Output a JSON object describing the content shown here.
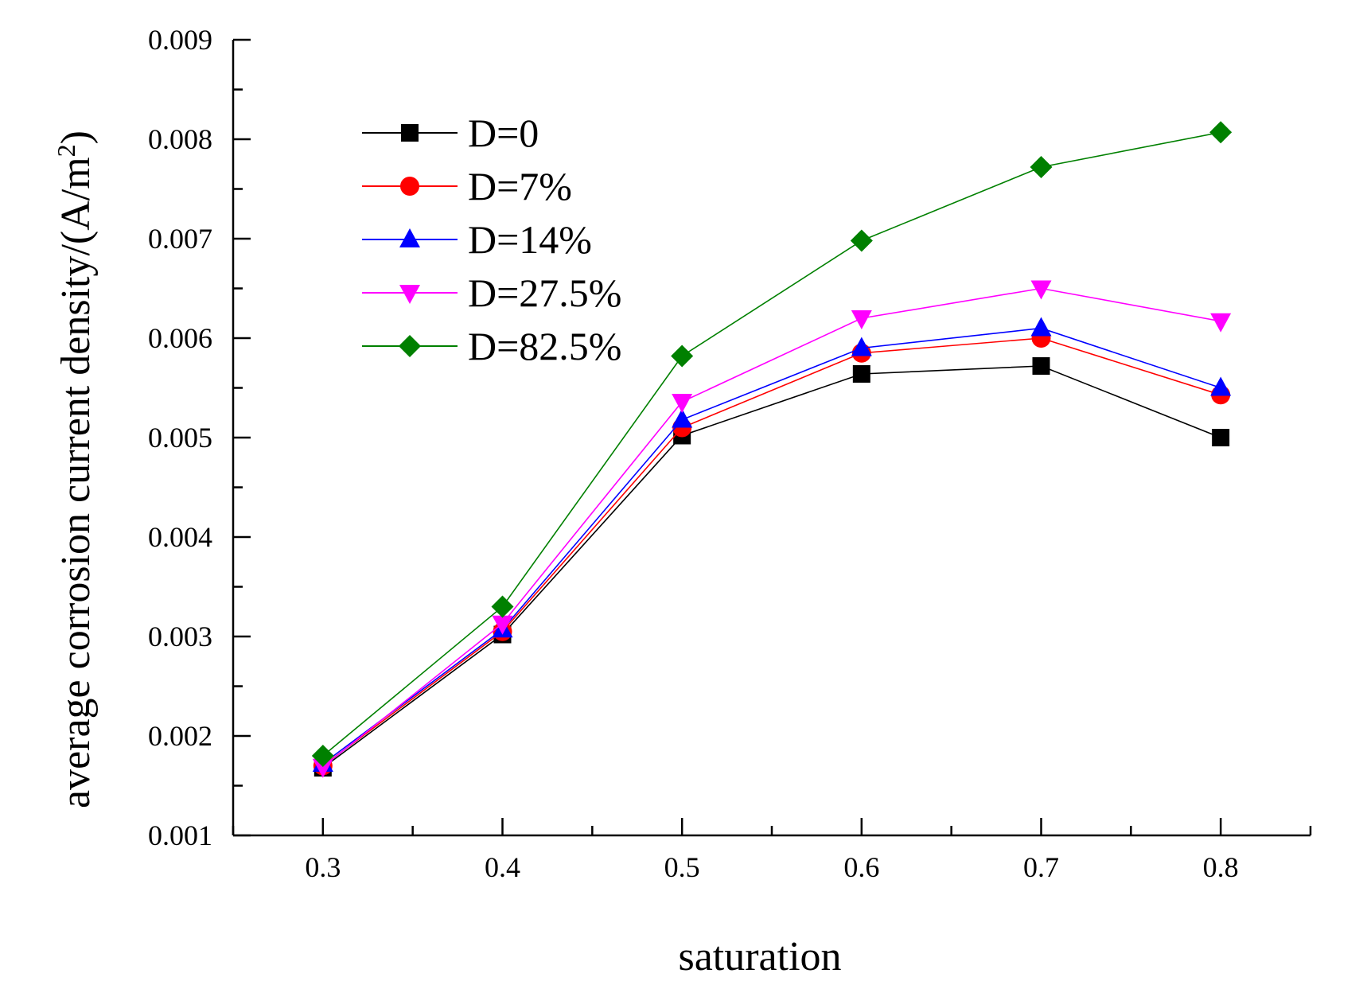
{
  "chart_data": {
    "type": "line",
    "title": "",
    "xlabel": "saturation",
    "ylabel": "average corrosion current density/(A/m²)",
    "ylabel_main": "average corrosion current density/(A/m",
    "ylabel_sup": "2",
    "ylabel_end": ")",
    "x": [
      0.3,
      0.4,
      0.5,
      0.6,
      0.7,
      0.8
    ],
    "x_tick_labels": [
      "0.3",
      "0.4",
      "0.5",
      "0.6",
      "0.7",
      "0.8"
    ],
    "y_tick_labels": [
      "0.001",
      "0.002",
      "0.003",
      "0.004",
      "0.005",
      "0.006",
      "0.007",
      "0.008",
      "0.009"
    ],
    "xlim": [
      0.25,
      0.85
    ],
    "ylim": [
      0.001,
      0.009
    ],
    "grid": false,
    "legend_position": "top-left",
    "series": [
      {
        "name": "D=0",
        "color": "#000000",
        "marker": "square",
        "values": [
          0.00168,
          0.00302,
          0.00502,
          0.00564,
          0.00572,
          0.005
        ]
      },
      {
        "name": "D=7%",
        "color": "#ff0000",
        "marker": "circle",
        "values": [
          0.0017,
          0.00305,
          0.0051,
          0.00585,
          0.006,
          0.00543
        ]
      },
      {
        "name": "D=14%",
        "color": "#0000ff",
        "marker": "triangle-up",
        "values": [
          0.00172,
          0.00307,
          0.00518,
          0.0059,
          0.0061,
          0.0055
        ]
      },
      {
        "name": "D=27.5%",
        "color": "#ff00ff",
        "marker": "triangle-down",
        "values": [
          0.00169,
          0.00313,
          0.00536,
          0.0062,
          0.0065,
          0.00617
        ]
      },
      {
        "name": "D=82.5%",
        "color": "#008000",
        "marker": "diamond",
        "values": [
          0.0018,
          0.0033,
          0.00582,
          0.00698,
          0.00772,
          0.00807
        ]
      }
    ]
  }
}
